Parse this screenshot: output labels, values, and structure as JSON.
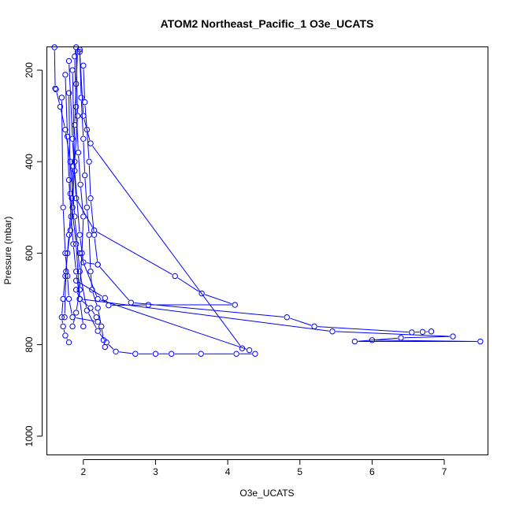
{
  "chart_data": {
    "type": "line",
    "title": "ATOM2 Northeast_Pacific_1 O3e_UCATS",
    "xlabel": "O3e_UCATS",
    "ylabel": "Pressure (mbar)",
    "xlim": [
      1.5,
      7.6
    ],
    "ylim": [
      1040,
      150
    ],
    "y_reversed": true,
    "x_ticks": [
      2,
      3,
      4,
      5,
      6,
      7
    ],
    "y_ticks": [
      200,
      400,
      600,
      800,
      1000
    ],
    "grid": false,
    "series_color": "#0000ff",
    "marker": "open-circle",
    "series": [
      {
        "x": [
          1.6,
          1.61,
          1.62,
          1.68,
          1.75,
          1.82,
          1.88,
          1.95,
          2.05,
          2.2,
          2.32,
          2.45,
          2.72,
          3.0,
          3.22,
          3.63,
          4.12,
          4.38
        ],
        "y": [
          148,
          240,
          242,
          280,
          330,
          400,
          520,
          640,
          725,
          770,
          795,
          815,
          820,
          820,
          820,
          820,
          820,
          820
        ]
      },
      {
        "x": [
          1.95,
          2.0,
          2.1,
          4.2,
          4.3,
          2.2,
          1.95
        ],
        "y": [
          160,
          300,
          360,
          808,
          812,
          700,
          600
        ]
      },
      {
        "x": [
          1.8,
          1.85,
          1.9,
          2.15,
          3.27,
          3.64,
          4.1,
          2.9,
          2.35,
          2.3,
          1.9
        ],
        "y": [
          180,
          350,
          480,
          550,
          650,
          688,
          713,
          713,
          714,
          698,
          660
        ]
      },
      {
        "x": [
          1.85,
          1.88,
          1.95,
          2.0,
          2.2,
          2.66,
          4.82,
          5.2,
          6.55,
          6.7,
          6.82
        ],
        "y": [
          200,
          420,
          560,
          620,
          625,
          708,
          740,
          760,
          773,
          772,
          771
        ]
      },
      {
        "x": [
          1.8,
          1.82,
          1.9,
          1.95,
          5.45,
          7.12,
          6.4,
          5.76,
          7.5,
          6.0
        ],
        "y": [
          250,
          470,
          580,
          700,
          771,
          782,
          785,
          793,
          793,
          790
        ]
      },
      {
        "x": [
          1.7,
          1.72,
          1.75,
          1.78,
          1.8,
          1.85,
          2.2,
          2.18,
          2.1,
          1.95,
          1.9
        ],
        "y": [
          260,
          500,
          600,
          650,
          700,
          740,
          750,
          740,
          720,
          700,
          680
        ]
      },
      {
        "x": [
          1.9,
          1.92,
          1.88,
          1.85,
          1.82,
          1.78,
          1.75,
          1.72,
          1.7,
          1.72,
          1.75,
          1.8
        ],
        "y": [
          150,
          300,
          400,
          500,
          550,
          600,
          650,
          700,
          740,
          760,
          780,
          795
        ]
      },
      {
        "x": [
          1.95,
          1.97,
          2.0,
          2.02,
          2.05,
          2.08,
          2.1,
          2.12,
          2.2,
          2.25,
          2.28,
          2.3
        ],
        "y": [
          155,
          260,
          350,
          430,
          500,
          560,
          640,
          680,
          720,
          760,
          790,
          805
        ]
      },
      {
        "x": [
          1.88,
          1.9,
          1.93,
          1.96,
          2.0,
          1.98,
          1.95,
          1.9,
          1.85
        ],
        "y": [
          170,
          280,
          380,
          450,
          520,
          600,
          680,
          730,
          760
        ]
      },
      {
        "x": [
          2.0,
          2.02,
          2.05,
          2.08,
          2.1,
          2.15,
          2.2
        ],
        "y": [
          190,
          270,
          330,
          400,
          480,
          560,
          625
        ]
      },
      {
        "x": [
          1.75,
          1.78,
          1.8,
          1.83,
          1.86,
          1.9,
          1.95,
          2.0
        ],
        "y": [
          210,
          345,
          440,
          520,
          580,
          640,
          700,
          760
        ]
      },
      {
        "x": [
          1.92,
          1.9,
          1.88,
          1.86,
          1.84,
          1.8,
          1.76,
          1.74
        ],
        "y": [
          160,
          230,
          320,
          410,
          480,
          560,
          640,
          740
        ]
      }
    ]
  }
}
